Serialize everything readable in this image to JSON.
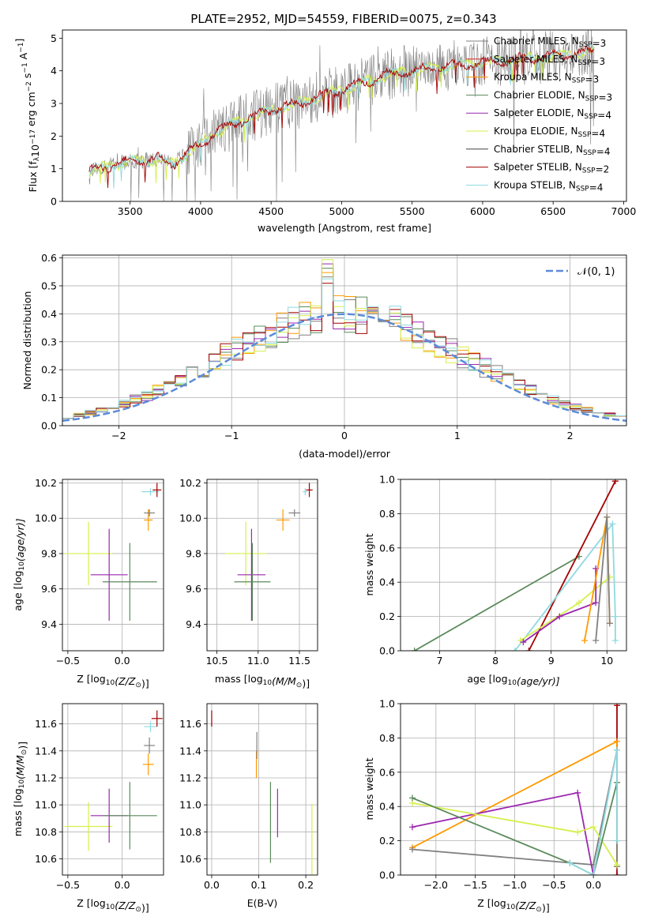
{
  "title": "PLATE=2952, MJD=54559, FIBERID=0075, z=0.343",
  "colors": {
    "Chabrier MILES": "#808080",
    "Salpeter MILES": "#d62728",
    "Kroupa MILES": "#ff9900",
    "Chabrier ELODIE": "#5b8a5b",
    "Salpeter ELODIE": "#9c27b0",
    "Kroupa ELODIE": "#d4f04a",
    "Chabrier STELIB": "#404040",
    "Salpeter STELIB": "#a40000",
    "Kroupa STELIB": "#8fd9e0"
  },
  "chart_data": [
    {
      "id": "spectrum",
      "type": "line",
      "xlabel": "wavelength [Angstrom, rest frame]",
      "ylabel_main": "Flux [f",
      "ylabel_lambda": "λ",
      "ylabel_mid": "10",
      "ylabel_exp": "−17",
      "ylabel_rest": " erg cm",
      "ylabel_exp2": "−2",
      "ylabel_s": " s",
      "ylabel_exp3": "−1",
      "ylabel_A": " A",
      "ylabel_exp4": "−1",
      "ylabel_end": "]",
      "xlim": [
        3020,
        7020
      ],
      "ylim": [
        0,
        5.25
      ],
      "xticks": [
        3500,
        4000,
        4500,
        5000,
        5500,
        6000,
        6500,
        7000
      ],
      "yticks": [
        0,
        1,
        2,
        3,
        4,
        5
      ],
      "grid": false,
      "legend_position": "top-right",
      "continuum_points": [
        [
          3210,
          0.9
        ],
        [
          3300,
          1.05
        ],
        [
          3450,
          1.2
        ],
        [
          3600,
          1.25
        ],
        [
          3700,
          1.3
        ],
        [
          3800,
          1.15
        ],
        [
          3950,
          1.6
        ],
        [
          4100,
          2.1
        ],
        [
          4300,
          2.5
        ],
        [
          4500,
          2.8
        ],
        [
          4700,
          3.0
        ],
        [
          4900,
          3.3
        ],
        [
          5100,
          3.55
        ],
        [
          5300,
          3.85
        ],
        [
          5500,
          4.0
        ],
        [
          5800,
          4.15
        ],
        [
          6100,
          4.3
        ],
        [
          6400,
          4.4
        ],
        [
          6800,
          4.6
        ]
      ],
      "observed_range": [
        3210,
        6790
      ],
      "legend": [
        {
          "name": "Chabrier MILES, N",
          "nssp": "3"
        },
        {
          "name": "Salpeter MILES, N",
          "nssp": "3"
        },
        {
          "name": "Kroupa MILES, N",
          "nssp": "3"
        },
        {
          "name": "Chabrier ELODIE, N",
          "nssp": "3"
        },
        {
          "name": "Salpeter ELODIE, N",
          "nssp": "4"
        },
        {
          "name": "Kroupa ELODIE, N",
          "nssp": "4"
        },
        {
          "name": "Chabrier STELIB, N",
          "nssp": "4"
        },
        {
          "name": "Salpeter STELIB, N",
          "nssp": "2"
        },
        {
          "name": "Kroupa STELIB, N",
          "nssp": "4"
        }
      ],
      "legend_sub": "SSP"
    },
    {
      "id": "residuals",
      "type": "line",
      "xlabel": "(data-model)/error",
      "ylabel": "Normed distribution",
      "xlim": [
        -2.5,
        2.5
      ],
      "ylim": [
        0,
        0.61
      ],
      "xticks": [
        -2,
        -1,
        0,
        1,
        2
      ],
      "yticks": [
        0.0,
        0.1,
        0.2,
        0.3,
        0.4,
        0.5,
        0.6
      ],
      "grid": true,
      "legend_position": "top-right",
      "gaussian_label": "𝒩(0, 1)",
      "gaussian_color": "#5b8bd9",
      "bin_width": 0.1,
      "histogram_models": [
        "Chabrier MILES",
        "Kroupa MILES",
        "Chabrier ELODIE",
        "Salpeter ELODIE",
        "Kroupa ELODIE",
        "Salpeter STELIB",
        "Kroupa STELIB"
      ]
    },
    {
      "id": "age_vs_Z",
      "type": "scatter",
      "xlabel_main": "Z [log",
      "xlabel_sub": "10",
      "xlabel_arg": "(Z/Z",
      "xlabel_sun": "⊙",
      "xlabel_end": ")]",
      "ylabel_main": "age  [log",
      "ylabel_sub": "10",
      "ylabel_arg": "(age/yr)]",
      "xlim": [
        -0.55,
        0.38
      ],
      "ylim": [
        9.25,
        10.22
      ],
      "xticks": [
        -0.5,
        0.0,
        0.5
      ],
      "yticks": [
        9.4,
        9.6,
        9.8,
        10.0,
        10.2
      ],
      "grid": true,
      "points": [
        {
          "model": "Kroupa ELODIE",
          "x": -0.31,
          "y": 9.8,
          "xerr": 0.22,
          "yerr": 0.18
        },
        {
          "model": "Salpeter ELODIE",
          "x": -0.12,
          "y": 9.68,
          "xerr": 0.17,
          "yerr": 0.26
        },
        {
          "model": "Chabrier ELODIE",
          "x": 0.07,
          "y": 9.64,
          "xerr": 0.25,
          "yerr": 0.22
        },
        {
          "model": "Kroupa STELIB",
          "x": 0.26,
          "y": 10.15,
          "xerr": 0.08,
          "yerr": 0.02
        },
        {
          "model": "Kroupa MILES",
          "x": 0.24,
          "y": 9.99,
          "xerr": 0.04,
          "yerr": 0.06
        },
        {
          "model": "Salpeter STELIB",
          "x": 0.32,
          "y": 10.16,
          "xerr": 0.04,
          "yerr": 0.04
        },
        {
          "model": "Chabrier MILES",
          "x": 0.25,
          "y": 10.03,
          "xerr": 0.05,
          "yerr": 0.02
        }
      ]
    },
    {
      "id": "age_vs_mass",
      "type": "scatter",
      "xlabel_main": "mass [log",
      "xlabel_sub": "10",
      "xlabel_arg": "(M/M",
      "xlabel_sun": "⊙",
      "xlabel_end": ")]",
      "xlim": [
        10.38,
        11.72
      ],
      "ylim": [
        9.25,
        10.22
      ],
      "xticks": [
        10.5,
        11.0,
        11.5
      ],
      "yticks": [
        9.4,
        9.6,
        9.8,
        10.0,
        10.2
      ],
      "grid": true,
      "points": [
        {
          "model": "Kroupa ELODIE",
          "x": 10.85,
          "y": 9.8,
          "xerr": 0.25,
          "yerr": 0.18
        },
        {
          "model": "Salpeter ELODIE",
          "x": 10.92,
          "y": 9.68,
          "xerr": 0.17,
          "yerr": 0.26
        },
        {
          "model": "Chabrier ELODIE",
          "x": 10.93,
          "y": 9.64,
          "xerr": 0.22,
          "yerr": 0.22
        },
        {
          "model": "Kroupa MILES",
          "x": 11.3,
          "y": 9.99,
          "xerr": 0.08,
          "yerr": 0.06
        },
        {
          "model": "Chabrier MILES",
          "x": 11.44,
          "y": 10.03,
          "xerr": 0.07,
          "yerr": 0.02
        },
        {
          "model": "Kroupa STELIB",
          "x": 11.57,
          "y": 10.15,
          "xerr": 0.03,
          "yerr": 0.02
        },
        {
          "model": "Salpeter STELIB",
          "x": 11.62,
          "y": 10.16,
          "xerr": 0.04,
          "yerr": 0.04
        }
      ]
    },
    {
      "id": "massweight_vs_age",
      "type": "line",
      "xlabel_main": "age  [log",
      "xlabel_sub": "10",
      "xlabel_arg": "(age/yr)]",
      "ylabel": "mass weight",
      "xlim": [
        6.3,
        10.35
      ],
      "ylim": [
        0,
        1.0
      ],
      "xticks": [
        7,
        8,
        9,
        10
      ],
      "yticks": [
        0.0,
        0.2,
        0.4,
        0.6,
        0.8,
        1.0
      ],
      "grid": true,
      "series": [
        {
          "model": "Chabrier ELODIE",
          "x": [
            6.55,
            9.5
          ],
          "y": [
            0.0,
            0.55
          ]
        },
        {
          "model": "Salpeter STELIB",
          "x": [
            8.6,
            10.15
          ],
          "y": [
            0.0,
            0.99
          ]
        },
        {
          "model": "Kroupa STELIB",
          "x": [
            8.35,
            10.1,
            10.15,
            10.15
          ],
          "y": [
            0.0,
            0.74,
            0.2,
            0.06
          ]
        },
        {
          "model": "Kroupa ELODIE",
          "x": [
            8.45,
            9.5,
            10.05
          ],
          "y": [
            0.06,
            0.28,
            0.43
          ]
        },
        {
          "model": "Salpeter ELODIE",
          "x": [
            8.5,
            9.15,
            9.8,
            9.8
          ],
          "y": [
            0.05,
            0.2,
            0.28,
            0.48
          ]
        },
        {
          "model": "Kroupa MILES",
          "x": [
            9.6,
            10.0,
            10.05
          ],
          "y": [
            0.06,
            0.78,
            0.16
          ]
        },
        {
          "model": "Chabrier MILES",
          "x": [
            9.8,
            10.0,
            10.05
          ],
          "y": [
            0.06,
            0.78,
            0.16
          ]
        }
      ]
    },
    {
      "id": "mass_vs_Z",
      "type": "scatter",
      "xlabel_main": "Z [log",
      "xlabel_sub": "10",
      "xlabel_arg": "(Z/Z",
      "xlabel_sun": "⊙",
      "xlabel_end": ")]",
      "ylabel_main": "mass [log",
      "ylabel_sub": "10",
      "ylabel_arg": "(M/M",
      "ylabel_sun": "⊙",
      "ylabel_end": ")]",
      "xlim": [
        -0.55,
        0.38
      ],
      "ylim": [
        10.48,
        11.75
      ],
      "xticks": [
        -0.5,
        0.0,
        0.5
      ],
      "yticks": [
        10.6,
        10.8,
        11.0,
        11.2,
        11.4,
        11.6
      ],
      "grid": true,
      "points": [
        {
          "model": "Kroupa ELODIE",
          "x": -0.31,
          "y": 10.84,
          "xerr": 0.22,
          "yerr": 0.18
        },
        {
          "model": "Salpeter ELODIE",
          "x": -0.12,
          "y": 10.92,
          "xerr": 0.17,
          "yerr": 0.2
        },
        {
          "model": "Chabrier ELODIE",
          "x": 0.07,
          "y": 10.92,
          "xerr": 0.25,
          "yerr": 0.25
        },
        {
          "model": "Kroupa MILES",
          "x": 0.24,
          "y": 11.3,
          "xerr": 0.05,
          "yerr": 0.08
        },
        {
          "model": "Chabrier MILES",
          "x": 0.25,
          "y": 11.44,
          "xerr": 0.05,
          "yerr": 0.06
        },
        {
          "model": "Kroupa STELIB",
          "x": 0.26,
          "y": 11.58,
          "xerr": 0.06,
          "yerr": 0.04
        },
        {
          "model": "Salpeter STELIB",
          "x": 0.32,
          "y": 11.64,
          "xerr": 0.05,
          "yerr": 0.06
        }
      ]
    },
    {
      "id": "mass_vs_ebv",
      "type": "scatter",
      "xlabel": "E(B-V)",
      "xlim": [
        -0.01,
        0.225
      ],
      "ylim": [
        10.48,
        11.75
      ],
      "xticks": [
        0.0,
        0.1,
        0.2
      ],
      "yticks": [
        10.6,
        10.8,
        11.0,
        11.2,
        11.4,
        11.6
      ],
      "grid": true,
      "points": [
        {
          "model": "Kroupa STELIB",
          "x": 0.0,
          "y": 11.6,
          "yerr": 0.04
        },
        {
          "model": "Salpeter STELIB",
          "x": 0.0,
          "y": 11.64,
          "yerr": 0.06
        },
        {
          "model": "Kroupa MILES",
          "x": 0.095,
          "y": 11.3,
          "yerr": 0.1
        },
        {
          "model": "Chabrier MILES",
          "x": 0.096,
          "y": 11.44,
          "yerr": 0.1
        },
        {
          "model": "Chabrier ELODIE",
          "x": 0.125,
          "y": 10.87,
          "yerr": 0.3
        },
        {
          "model": "Salpeter ELODIE",
          "x": 0.14,
          "y": 10.94,
          "yerr": 0.18
        },
        {
          "model": "Kroupa ELODIE",
          "x": 0.213,
          "y": 10.74,
          "yerr": 0.27
        }
      ]
    },
    {
      "id": "massweight_vs_Z",
      "type": "line",
      "xlabel_main": "Z [log",
      "xlabel_sub": "10",
      "xlabel_arg": "(Z/Z",
      "xlabel_sun": "⊙",
      "xlabel_end": ")]",
      "ylabel": "mass weight",
      "xlim": [
        -2.45,
        0.42
      ],
      "ylim": [
        0,
        1.0
      ],
      "xticks": [
        -2.0,
        -1.5,
        -1.0,
        -0.5,
        0.0
      ],
      "yticks": [
        0.0,
        0.2,
        0.4,
        0.6,
        0.8,
        1.0
      ],
      "grid": true,
      "series": [
        {
          "model": "Salpeter STELIB",
          "x": [
            0.3,
            0.3,
            0.3
          ],
          "y": [
            0.0,
            0.99,
            0.05
          ]
        },
        {
          "model": "Kroupa MILES",
          "x": [
            -2.3,
            0.3,
            0.3
          ],
          "y": [
            0.16,
            0.78,
            0.05
          ]
        },
        {
          "model": "Chabrier MILES",
          "x": [
            -2.3,
            0.0,
            0.3,
            0.3
          ],
          "y": [
            0.15,
            0.06,
            0.73,
            0.05
          ]
        },
        {
          "model": "Salpeter ELODIE",
          "x": [
            -2.3,
            -0.2,
            0.0
          ],
          "y": [
            0.28,
            0.48,
            0.0
          ]
        },
        {
          "model": "Kroupa ELODIE",
          "x": [
            -2.3,
            -0.2,
            0.0,
            0.3
          ],
          "y": [
            0.42,
            0.25,
            0.28,
            0.06
          ]
        },
        {
          "model": "Chabrier ELODIE",
          "x": [
            -2.3,
            -0.3,
            0.0,
            0.3
          ],
          "y": [
            0.45,
            0.07,
            0.0,
            0.54
          ]
        },
        {
          "model": "Kroupa STELIB",
          "x": [
            -0.3,
            0.0,
            0.3,
            0.3
          ],
          "y": [
            0.07,
            0.0,
            0.73,
            0.2
          ]
        }
      ]
    }
  ]
}
